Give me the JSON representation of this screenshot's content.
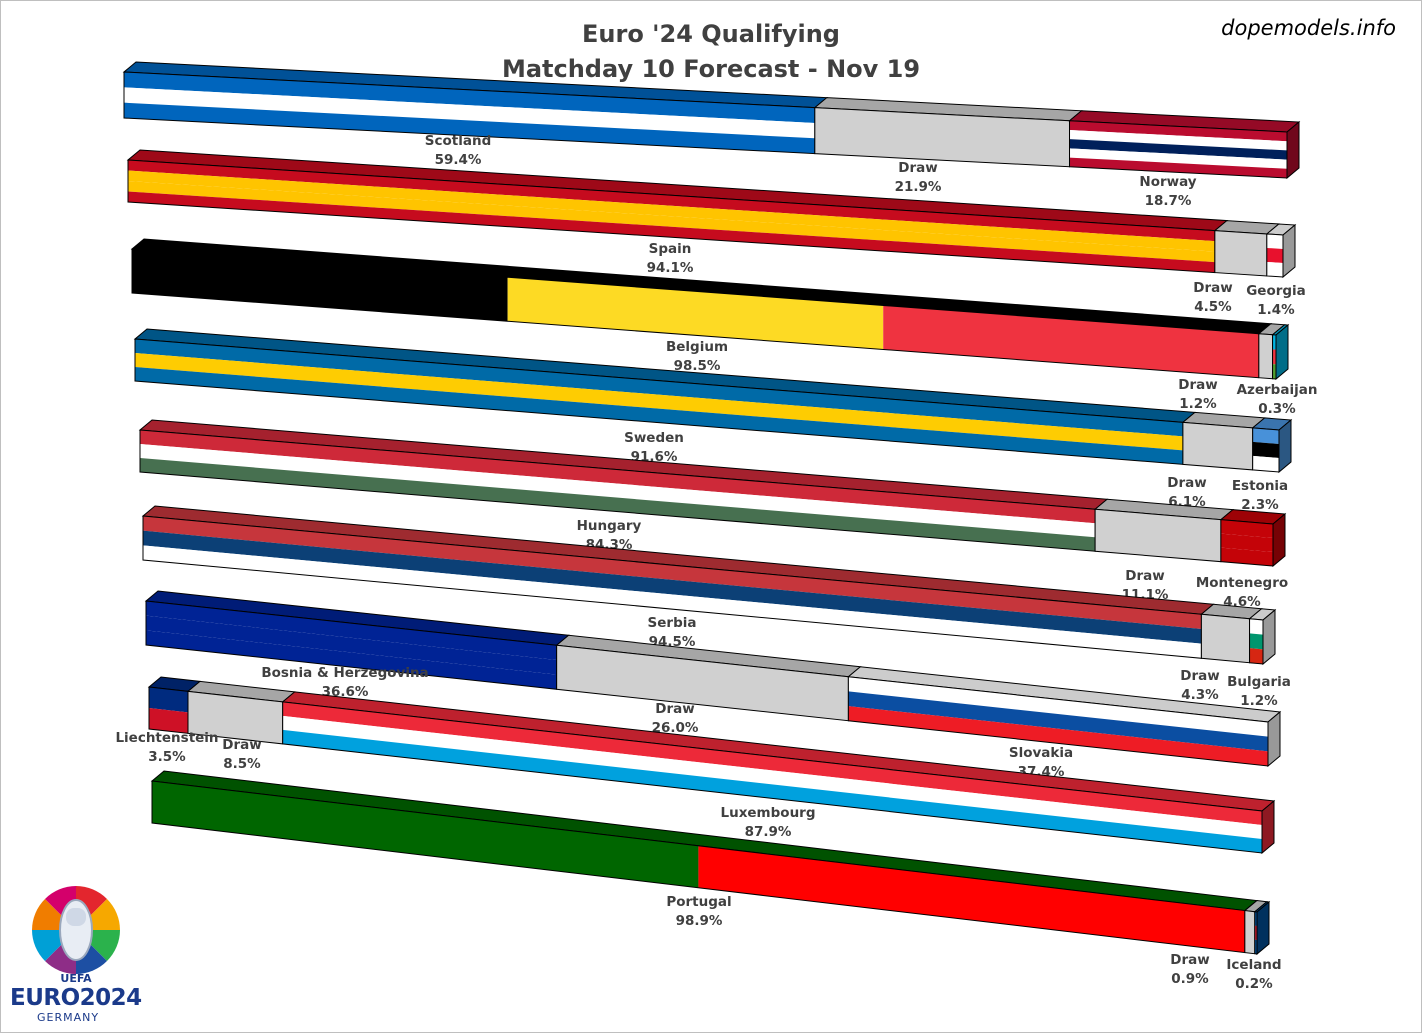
{
  "title_line1": "Euro '24 Qualifying",
  "title_line2": "Matchday 10 Forecast - Nov 19",
  "credit": "dopemodels.info",
  "logo": {
    "brand": "EURO2024",
    "sub": "GERMANY",
    "org": "UEFA"
  },
  "chart_data": {
    "type": "bar",
    "stacked": true,
    "orientation": "horizontal-3d",
    "matches": [
      {
        "home": "Scotland",
        "away": "Norway",
        "home_pct": "59.4%",
        "draw_pct": "21.9%",
        "away_pct": "18.7%",
        "values": [
          59.4,
          21.9,
          18.7
        ]
      },
      {
        "home": "Spain",
        "away": "Georgia",
        "home_pct": "94.1%",
        "draw_pct": "4.5%",
        "away_pct": "1.4%",
        "values": [
          94.1,
          4.5,
          1.4
        ]
      },
      {
        "home": "Belgium",
        "away": "Azerbaijan",
        "home_pct": "98.5%",
        "draw_pct": "1.2%",
        "away_pct": "0.3%",
        "values": [
          98.5,
          1.2,
          0.3
        ]
      },
      {
        "home": "Sweden",
        "away": "Estonia",
        "home_pct": "91.6%",
        "draw_pct": "6.1%",
        "away_pct": "2.3%",
        "values": [
          91.6,
          6.1,
          2.3
        ]
      },
      {
        "home": "Hungary",
        "away": "Montenegro",
        "home_pct": "84.3%",
        "draw_pct": "11.1%",
        "away_pct": "4.6%",
        "values": [
          84.3,
          11.1,
          4.6
        ]
      },
      {
        "home": "Serbia",
        "away": "Bulgaria",
        "home_pct": "94.5%",
        "draw_pct": "4.3%",
        "away_pct": "1.2%",
        "values": [
          94.5,
          4.3,
          1.2
        ]
      },
      {
        "home": "Bosnia & Herzegovina",
        "away": "Slovakia",
        "home_pct": "36.6%",
        "draw_pct": "26.0%",
        "away_pct": "37.4%",
        "values": [
          36.6,
          26.0,
          37.4
        ]
      },
      {
        "home": "Liechtenstein",
        "away": "Luxembourg",
        "home_pct": "3.5%",
        "draw_pct": "8.5%",
        "away_pct": "87.9%",
        "values": [
          3.5,
          8.5,
          87.9
        ]
      },
      {
        "home": "Portugal",
        "away": "Iceland",
        "home_pct": "98.9%",
        "draw_pct": "0.9%",
        "away_pct": "0.2%",
        "values": [
          98.9,
          0.9,
          0.2
        ]
      }
    ],
    "draw_label": "Draw",
    "draw_color": "#d0d0d0"
  }
}
